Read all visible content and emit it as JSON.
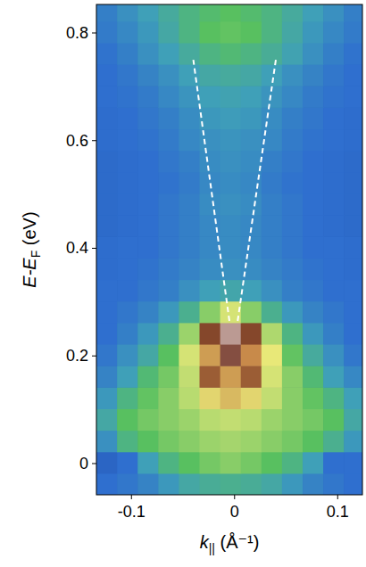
{
  "chart_data": {
    "type": "heatmap",
    "xlabel": {
      "text": "k",
      "sub": "||",
      "unit": " (Å⁻¹)"
    },
    "ylabel": {
      "text": "E-E",
      "sub": "F",
      "unit": " (eV)"
    },
    "xlim": [
      -0.134,
      0.124
    ],
    "ylim": [
      -0.058,
      0.853
    ],
    "xticks": [
      -0.1,
      0,
      0.1
    ],
    "yticks": [
      0,
      0.2,
      0.4,
      0.6,
      0.8
    ],
    "zlim": [
      0,
      1
    ],
    "x": [
      -0.124,
      -0.104,
      -0.084,
      -0.064,
      -0.044,
      -0.024,
      -0.004,
      0.016,
      0.036,
      0.056,
      0.076,
      0.096,
      0.116
    ],
    "y": [
      -0.038,
      0.002,
      0.042,
      0.082,
      0.122,
      0.162,
      0.202,
      0.242,
      0.282,
      0.322,
      0.362,
      0.402,
      0.442,
      0.482,
      0.522,
      0.562,
      0.602,
      0.642,
      0.682,
      0.722,
      0.762,
      0.802,
      0.842
    ],
    "values": [
      [
        0.3,
        0.32,
        0.35,
        0.4,
        0.45,
        0.47,
        0.48,
        0.47,
        0.45,
        0.4,
        0.35,
        0.32,
        0.3
      ],
      [
        0.25,
        0.3,
        0.42,
        0.5,
        0.55,
        0.58,
        0.6,
        0.58,
        0.55,
        0.5,
        0.42,
        0.3,
        0.3
      ],
      [
        0.38,
        0.5,
        0.55,
        0.58,
        0.6,
        0.62,
        0.63,
        0.62,
        0.6,
        0.58,
        0.55,
        0.48,
        0.4
      ],
      [
        0.45,
        0.55,
        0.58,
        0.6,
        0.62,
        0.65,
        0.66,
        0.65,
        0.62,
        0.6,
        0.58,
        0.55,
        0.45
      ],
      [
        0.4,
        0.5,
        0.56,
        0.6,
        0.65,
        0.72,
        0.75,
        0.72,
        0.66,
        0.6,
        0.56,
        0.5,
        0.42
      ],
      [
        0.35,
        0.42,
        0.52,
        0.58,
        0.66,
        0.84,
        0.78,
        0.84,
        0.68,
        0.6,
        0.52,
        0.42,
        0.36
      ],
      [
        0.32,
        0.38,
        0.45,
        0.55,
        0.68,
        0.78,
        0.9,
        0.8,
        0.7,
        0.56,
        0.46,
        0.38,
        0.32
      ],
      [
        0.3,
        0.34,
        0.4,
        0.48,
        0.62,
        0.86,
        0.95,
        0.86,
        0.64,
        0.5,
        0.4,
        0.34,
        0.3
      ],
      [
        0.3,
        0.32,
        0.35,
        0.4,
        0.48,
        0.6,
        0.68,
        0.6,
        0.48,
        0.4,
        0.35,
        0.32,
        0.3
      ],
      [
        0.3,
        0.3,
        0.32,
        0.34,
        0.38,
        0.42,
        0.44,
        0.42,
        0.38,
        0.34,
        0.32,
        0.3,
        0.3
      ],
      [
        0.29,
        0.3,
        0.31,
        0.33,
        0.35,
        0.37,
        0.38,
        0.37,
        0.35,
        0.33,
        0.31,
        0.3,
        0.29
      ],
      [
        0.29,
        0.3,
        0.3,
        0.32,
        0.34,
        0.36,
        0.37,
        0.36,
        0.34,
        0.32,
        0.3,
        0.3,
        0.29
      ],
      [
        0.28,
        0.29,
        0.3,
        0.32,
        0.34,
        0.36,
        0.37,
        0.36,
        0.34,
        0.32,
        0.3,
        0.29,
        0.28
      ],
      [
        0.28,
        0.29,
        0.3,
        0.32,
        0.34,
        0.37,
        0.38,
        0.37,
        0.34,
        0.32,
        0.3,
        0.29,
        0.28
      ],
      [
        0.28,
        0.29,
        0.3,
        0.31,
        0.33,
        0.36,
        0.37,
        0.36,
        0.33,
        0.31,
        0.3,
        0.29,
        0.28
      ],
      [
        0.28,
        0.29,
        0.3,
        0.32,
        0.34,
        0.37,
        0.38,
        0.37,
        0.34,
        0.32,
        0.3,
        0.29,
        0.28
      ],
      [
        0.29,
        0.3,
        0.31,
        0.33,
        0.36,
        0.38,
        0.39,
        0.38,
        0.36,
        0.33,
        0.31,
        0.3,
        0.29
      ],
      [
        0.29,
        0.3,
        0.32,
        0.34,
        0.37,
        0.4,
        0.41,
        0.4,
        0.37,
        0.34,
        0.32,
        0.3,
        0.29
      ],
      [
        0.3,
        0.31,
        0.33,
        0.36,
        0.39,
        0.42,
        0.43,
        0.42,
        0.39,
        0.36,
        0.33,
        0.31,
        0.3
      ],
      [
        0.3,
        0.32,
        0.35,
        0.38,
        0.42,
        0.45,
        0.46,
        0.45,
        0.42,
        0.38,
        0.35,
        0.32,
        0.3
      ],
      [
        0.31,
        0.34,
        0.38,
        0.42,
        0.46,
        0.5,
        0.52,
        0.5,
        0.47,
        0.43,
        0.38,
        0.34,
        0.31
      ],
      [
        0.33,
        0.36,
        0.4,
        0.45,
        0.5,
        0.55,
        0.56,
        0.55,
        0.5,
        0.45,
        0.4,
        0.36,
        0.33
      ],
      [
        0.34,
        0.38,
        0.42,
        0.46,
        0.5,
        0.53,
        0.55,
        0.53,
        0.5,
        0.46,
        0.42,
        0.38,
        0.34
      ]
    ],
    "lines": [
      {
        "x": [
          -0.005,
          -0.04
        ],
        "y": [
          0.265,
          0.75
        ],
        "color": "#ffffff",
        "line_style": "dashed"
      },
      {
        "x": [
          0.003,
          0.04
        ],
        "y": [
          0.265,
          0.75
        ],
        "color": "#ffffff",
        "line_style": "dashed"
      }
    ]
  }
}
